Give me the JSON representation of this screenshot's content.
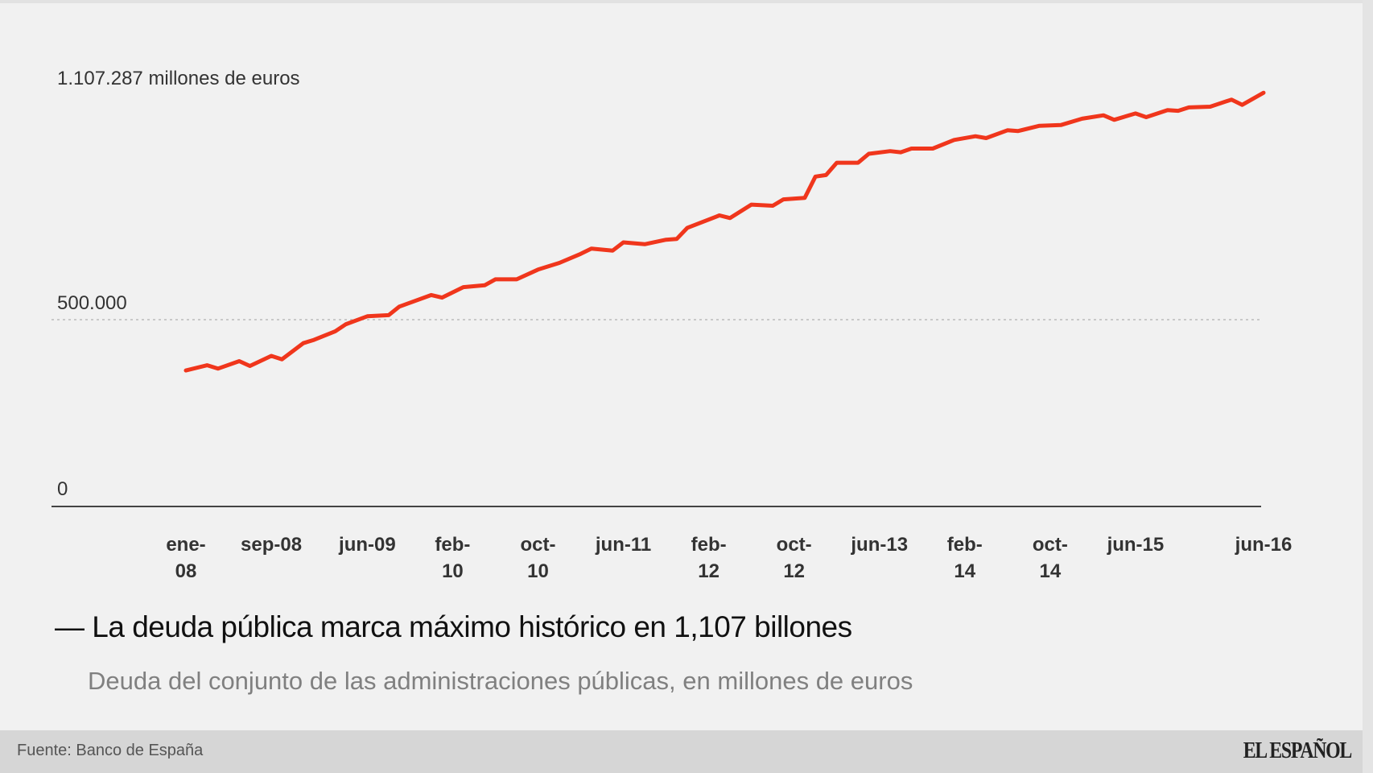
{
  "chart_data": {
    "type": "line",
    "title": "La deuda pública marca máximo histórico en 1,107 billones",
    "subtitle": "Deuda del conjunto de las administraciones públicas, en millones de euros",
    "max_label": "1.107.287 millones de euros",
    "y_tick_labels": [
      "0",
      "500.000"
    ],
    "y_ticks": [
      0,
      500000
    ],
    "ylim": [
      0,
      1107287
    ],
    "grid": "dotted line at 500.000",
    "x_tick_labels": [
      {
        "top": "ene-",
        "bottom": "08",
        "date": "2008-01"
      },
      {
        "top": "sep-08",
        "bottom": "",
        "date": "2008-09"
      },
      {
        "top": "jun-09",
        "bottom": "",
        "date": "2009-06"
      },
      {
        "top": "feb-",
        "bottom": "10",
        "date": "2010-02"
      },
      {
        "top": "oct-",
        "bottom": "10",
        "date": "2010-10"
      },
      {
        "top": "jun-11",
        "bottom": "",
        "date": "2011-06"
      },
      {
        "top": "feb-",
        "bottom": "12",
        "date": "2012-02"
      },
      {
        "top": "oct-",
        "bottom": "12",
        "date": "2012-10"
      },
      {
        "top": "jun-13",
        "bottom": "",
        "date": "2013-06"
      },
      {
        "top": "feb-",
        "bottom": "14",
        "date": "2014-02"
      },
      {
        "top": "oct-",
        "bottom": "14",
        "date": "2014-10"
      },
      {
        "top": "jun-15",
        "bottom": "",
        "date": "2015-06"
      },
      {
        "top": "jun-16",
        "bottom": "",
        "date": "2016-06"
      }
    ],
    "x_range": [
      "2008-01",
      "2016-06"
    ],
    "series": [
      {
        "color": "#f0361c",
        "points": [
          [
            "2008-01",
            364000
          ],
          [
            "2008-03",
            378000
          ],
          [
            "2008-04",
            369000
          ],
          [
            "2008-06",
            389000
          ],
          [
            "2008-07",
            376000
          ],
          [
            "2008-09",
            403000
          ],
          [
            "2008-10",
            394000
          ],
          [
            "2008-12",
            437000
          ],
          [
            "2009-01",
            446000
          ],
          [
            "2009-03",
            469000
          ],
          [
            "2009-04",
            488000
          ],
          [
            "2009-06",
            509000
          ],
          [
            "2009-08",
            512000
          ],
          [
            "2009-09",
            535000
          ],
          [
            "2009-12",
            566000
          ],
          [
            "2010-01",
            559000
          ],
          [
            "2010-03",
            587000
          ],
          [
            "2010-05",
            592000
          ],
          [
            "2010-06",
            608000
          ],
          [
            "2010-08",
            608000
          ],
          [
            "2010-10",
            634000
          ],
          [
            "2010-12",
            652000
          ],
          [
            "2011-02",
            676000
          ],
          [
            "2011-03",
            690000
          ],
          [
            "2011-05",
            685000
          ],
          [
            "2011-06",
            707000
          ],
          [
            "2011-08",
            702000
          ],
          [
            "2011-10",
            714000
          ],
          [
            "2011-11",
            716000
          ],
          [
            "2011-12",
            746000
          ],
          [
            "2012-03",
            779000
          ],
          [
            "2012-04",
            772000
          ],
          [
            "2012-06",
            808000
          ],
          [
            "2012-08",
            805000
          ],
          [
            "2012-09",
            822000
          ],
          [
            "2012-11",
            826000
          ],
          [
            "2012-12",
            883000
          ],
          [
            "2013-01",
            887000
          ],
          [
            "2013-02",
            920000
          ],
          [
            "2013-04",
            920000
          ],
          [
            "2013-05",
            944000
          ],
          [
            "2013-07",
            951000
          ],
          [
            "2013-08",
            948000
          ],
          [
            "2013-09",
            958000
          ],
          [
            "2013-11",
            958000
          ],
          [
            "2014-01",
            981000
          ],
          [
            "2014-03",
            991000
          ],
          [
            "2014-04",
            986000
          ],
          [
            "2014-06",
            1007000
          ],
          [
            "2014-07",
            1005000
          ],
          [
            "2014-09",
            1019000
          ],
          [
            "2014-11",
            1021000
          ],
          [
            "2015-01",
            1038000
          ],
          [
            "2015-03",
            1047000
          ],
          [
            "2015-04",
            1035000
          ],
          [
            "2015-06",
            1052000
          ],
          [
            "2015-07",
            1042000
          ],
          [
            "2015-09",
            1061000
          ],
          [
            "2015-10",
            1059000
          ],
          [
            "2015-11",
            1068000
          ],
          [
            "2016-01",
            1070000
          ],
          [
            "2016-03",
            1089000
          ],
          [
            "2016-04",
            1075000
          ],
          [
            "2016-06",
            1107287
          ]
        ]
      }
    ]
  },
  "footer": {
    "source": "Fuente: Banco de España",
    "logo": "EL ESPAÑOL"
  },
  "colors": {
    "background": "#f1f1f1",
    "footer": "#d6d6d6",
    "line": "#f0361c"
  }
}
